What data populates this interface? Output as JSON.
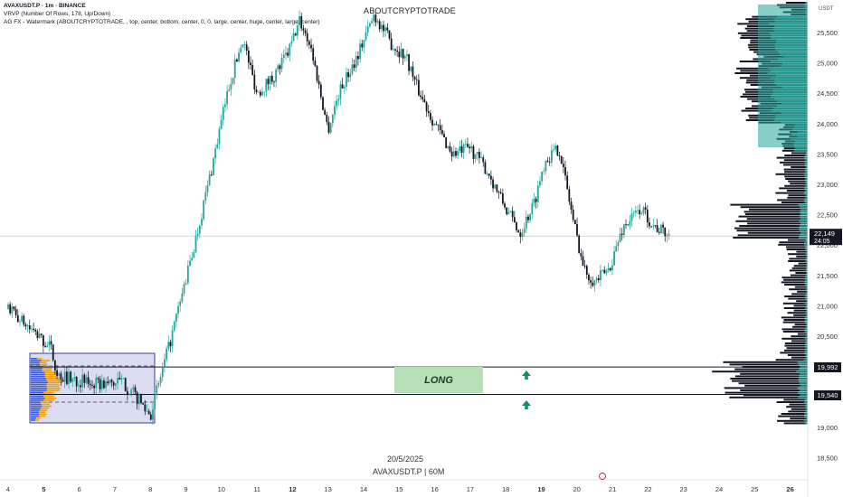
{
  "header": {
    "symbol_line": "AVAXUSDT.P · 1m · BINANCE",
    "vrvp_line": "VRVP (Number Of Rows, 178, Up/Down)",
    "wm_line": "AG FX - Watermark (ABOUTCRYPTOTRADE, , top, center, bottom, center, 0, 0, large, center, huge, center, large, center)"
  },
  "watermark": "ABOUTCRYPTOTRADE",
  "footer": {
    "date": "20/5/2025",
    "symbol": "AVAXUSDT.P | 60M"
  },
  "annotation": {
    "long_label": "LONG"
  },
  "colors": {
    "up": "#26a69a",
    "down": "#131722",
    "long_zone": "#b7e0b9",
    "range_box": "#9fa8da",
    "profile_up": "#26a69a",
    "profile_down": "#131722",
    "arrow": "#1b8a6a"
  },
  "chart_data": {
    "type": "candlestick",
    "currency_label": "USDT",
    "y_ticks": [
      25500,
      25000,
      24500,
      24000,
      23500,
      23000,
      22500,
      22000,
      21500,
      21000,
      20500,
      20000,
      19500,
      19000,
      18500
    ],
    "y_tick_labels": [
      "25,500",
      "25,000",
      "24,500",
      "24,000",
      "23,500",
      "23,000",
      "22,500",
      "22,000",
      "21,500",
      "21,000",
      "20,500",
      "20,000",
      "19,500",
      "19,000",
      "18,500"
    ],
    "x_ticks": [
      "4",
      "5",
      "6",
      "7",
      "8",
      "9",
      "10",
      "11",
      "12",
      "13",
      "14",
      "15",
      "16",
      "17",
      "18",
      "19",
      "20",
      "21",
      "22",
      "23",
      "24",
      "25",
      "26"
    ],
    "x_bold": [
      "5",
      "12",
      "19",
      "26"
    ],
    "current_price": {
      "value": 22149,
      "label": "22,149",
      "timer": "24:05"
    },
    "horizontal_levels": [
      {
        "value": 19992,
        "label": "19,992"
      },
      {
        "value": 19540,
        "label": "19,540"
      }
    ],
    "path_keypoints": [
      [
        0,
        20950
      ],
      [
        1.2,
        20300
      ],
      [
        1.4,
        19850
      ],
      [
        2.5,
        19700
      ],
      [
        3.2,
        19750
      ],
      [
        3.6,
        19500
      ],
      [
        4.0,
        19200
      ],
      [
        4.6,
        20500
      ],
      [
        5.2,
        21900
      ],
      [
        5.7,
        23200
      ],
      [
        6.2,
        24600
      ],
      [
        6.6,
        25400
      ],
      [
        7.0,
        24500
      ],
      [
        7.5,
        24800
      ],
      [
        7.9,
        25200
      ],
      [
        8.2,
        25700
      ],
      [
        8.5,
        25300
      ],
      [
        9.0,
        23900
      ],
      [
        9.3,
        24500
      ],
      [
        9.8,
        25100
      ],
      [
        10.3,
        25800
      ],
      [
        10.8,
        25300
      ],
      [
        11.2,
        25100
      ],
      [
        11.5,
        24600
      ],
      [
        12.0,
        24000
      ],
      [
        12.5,
        23500
      ],
      [
        13.0,
        23600
      ],
      [
        13.5,
        23200
      ],
      [
        14.0,
        22600
      ],
      [
        14.4,
        22200
      ],
      [
        14.8,
        22700
      ],
      [
        15.1,
        23400
      ],
      [
        15.5,
        23600
      ],
      [
        15.9,
        22400
      ],
      [
        16.2,
        21600
      ],
      [
        16.5,
        21400
      ],
      [
        16.9,
        21600
      ],
      [
        17.3,
        22300
      ],
      [
        17.8,
        22600
      ],
      [
        18.2,
        22300
      ],
      [
        18.6,
        22150
      ]
    ],
    "profile_note": "volume profile shown at right edge and inside the 5–8 range box"
  }
}
